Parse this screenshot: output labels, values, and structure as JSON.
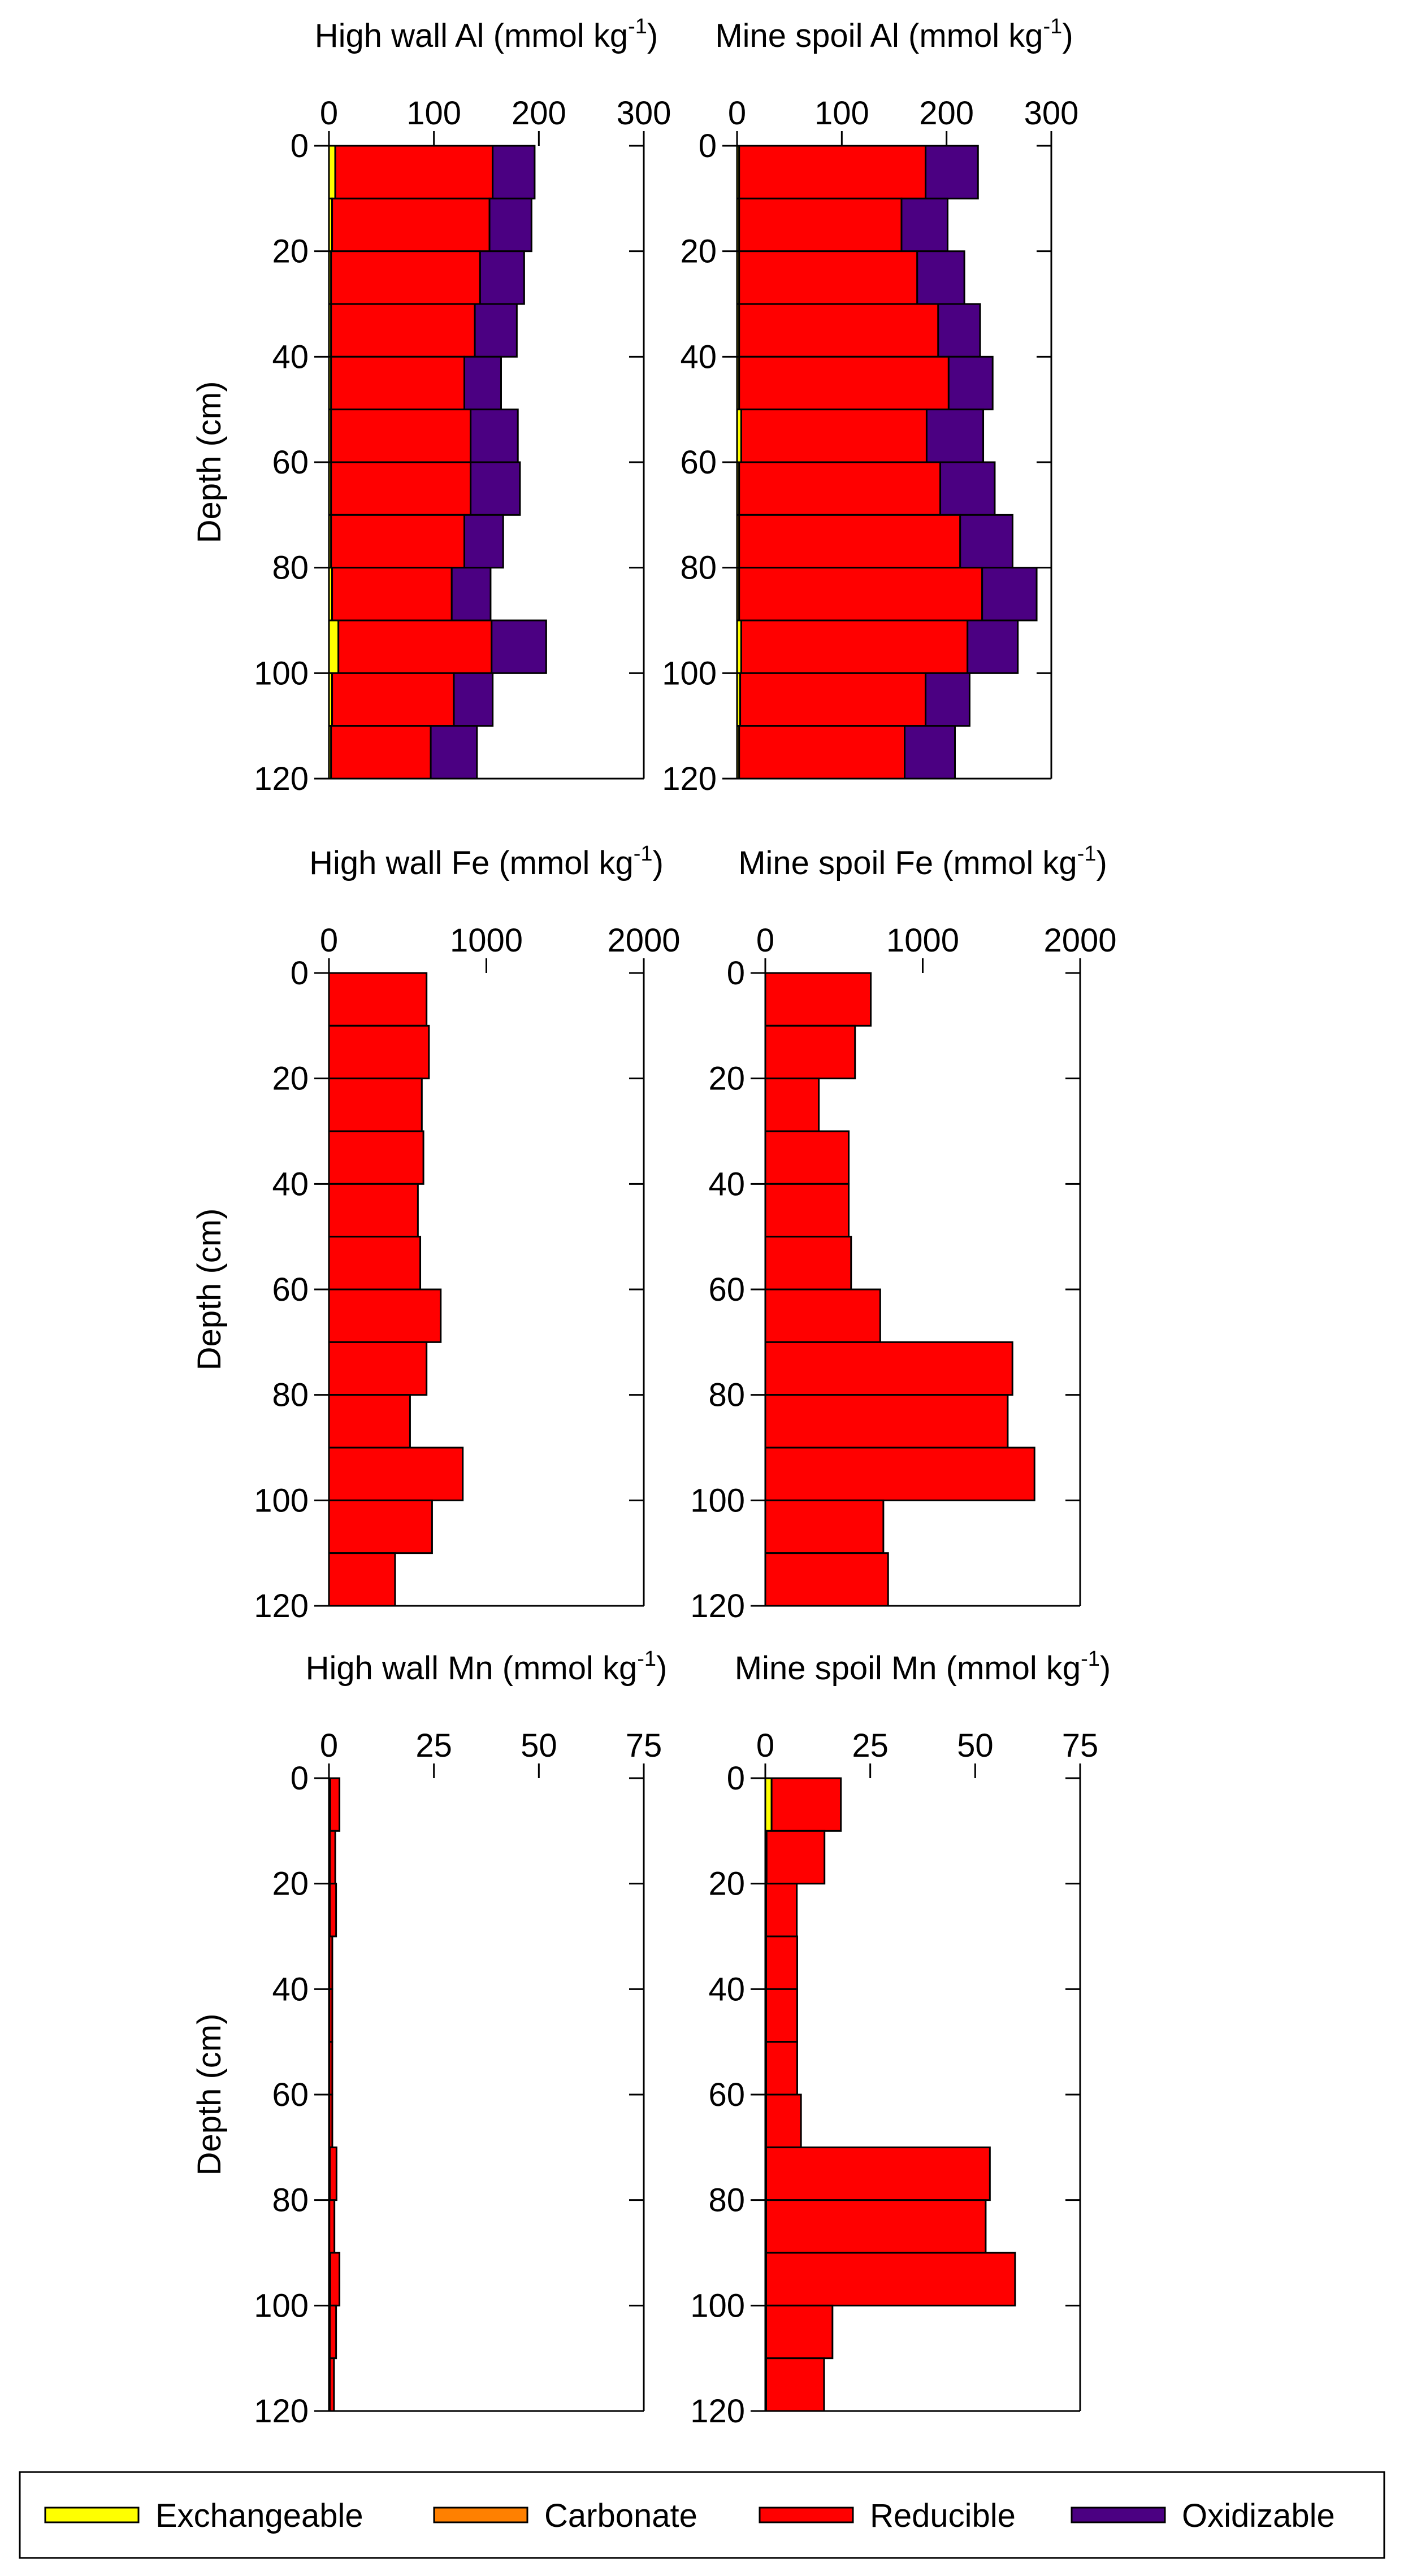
{
  "chart_data": {
    "type": "bar",
    "orientation": "horizontal-stacked",
    "depth_label": "Depth (cm)",
    "depth_ticks": [
      0,
      20,
      40,
      60,
      80,
      100,
      120
    ],
    "depth_range": [
      0,
      120
    ],
    "layer_tops_cm": [
      0,
      10,
      20,
      30,
      40,
      50,
      60,
      70,
      80,
      90,
      100,
      110
    ],
    "fractions": [
      {
        "name": "Exchangeable",
        "color": "#ffff00"
      },
      {
        "name": "Carbonate",
        "color": "#ff8000"
      },
      {
        "name": "Reducible",
        "color": "#ff0000"
      },
      {
        "name": "Oxidizable",
        "color": "#4b0082"
      }
    ],
    "panels": [
      {
        "title": "High wall Al (mmol kg",
        "title_sup": "-1",
        "title_close": ")",
        "xlim": [
          0,
          300
        ],
        "xticks": [
          0,
          100,
          200,
          300
        ],
        "series": {
          "Exchangeable": [
            6,
            3,
            2,
            2,
            2,
            2,
            2,
            2,
            3,
            9,
            3,
            2
          ],
          "Carbonate": [
            0,
            0,
            0,
            0,
            0,
            0,
            0,
            0,
            0,
            0,
            0,
            0
          ],
          "Reducible": [
            150,
            150,
            142,
            137,
            127,
            133,
            133,
            127,
            114,
            146,
            116,
            95
          ],
          "Oxidizable": [
            40,
            40,
            42,
            40,
            35,
            45,
            47,
            37,
            37,
            52,
            37,
            44
          ]
        }
      },
      {
        "title": "Mine spoil Al (mmol kg",
        "title_sup": "-1",
        "title_close": ")",
        "xlim": [
          0,
          300
        ],
        "xticks": [
          0,
          100,
          200,
          300
        ],
        "series": {
          "Exchangeable": [
            2,
            2,
            2,
            2,
            2,
            4,
            2,
            2,
            2,
            4,
            3,
            2
          ],
          "Carbonate": [
            0,
            0,
            0,
            0,
            0,
            0,
            0,
            0,
            0,
            0,
            0,
            0
          ],
          "Reducible": [
            178,
            155,
            170,
            190,
            200,
            177,
            192,
            211,
            232,
            216,
            177,
            158
          ],
          "Oxidizable": [
            50,
            44,
            45,
            40,
            42,
            54,
            52,
            50,
            52,
            48,
            42,
            48
          ]
        }
      },
      {
        "title": "High wall Fe (mmol kg",
        "title_sup": "-1",
        "title_close": ")",
        "xlim": [
          0,
          2000
        ],
        "xticks": [
          0,
          1000,
          2000
        ],
        "series": {
          "Exchangeable": [
            0,
            0,
            0,
            0,
            0,
            0,
            0,
            0,
            0,
            0,
            0,
            0
          ],
          "Carbonate": [
            0,
            0,
            0,
            0,
            0,
            0,
            0,
            0,
            0,
            0,
            0,
            0
          ],
          "Reducible": [
            620,
            635,
            590,
            600,
            565,
            580,
            710,
            620,
            515,
            850,
            655,
            420
          ],
          "Oxidizable": [
            0,
            0,
            0,
            0,
            0,
            0,
            0,
            0,
            0,
            0,
            0,
            0
          ]
        }
      },
      {
        "title": "Mine spoil Fe (mmol kg",
        "title_sup": "-1",
        "title_close": ")",
        "xlim": [
          0,
          2000
        ],
        "xticks": [
          0,
          1000,
          2000
        ],
        "series": {
          "Exchangeable": [
            0,
            0,
            0,
            0,
            0,
            0,
            0,
            0,
            0,
            0,
            0,
            0
          ],
          "Carbonate": [
            0,
            0,
            0,
            0,
            0,
            0,
            0,
            0,
            0,
            0,
            0,
            0
          ],
          "Reducible": [
            670,
            570,
            340,
            530,
            530,
            545,
            730,
            1570,
            1540,
            1710,
            750,
            780
          ],
          "Oxidizable": [
            0,
            0,
            0,
            0,
            0,
            0,
            0,
            0,
            0,
            0,
            0,
            0
          ]
        }
      },
      {
        "title": "High wall Mn (mmol kg",
        "title_sup": "-1",
        "title_close": ")",
        "xlim": [
          0,
          75
        ],
        "xticks": [
          0,
          25,
          50,
          75
        ],
        "series": {
          "Exchangeable": [
            0.3,
            0.2,
            0.2,
            0.1,
            0.1,
            0.1,
            0.1,
            0.2,
            0.1,
            0.3,
            0.2,
            0.2
          ],
          "Carbonate": [
            0,
            0,
            0,
            0,
            0,
            0,
            0,
            0,
            0,
            0,
            0,
            0
          ],
          "Reducible": [
            2.2,
            1.3,
            1.5,
            0.7,
            0.7,
            0.7,
            0.7,
            1.6,
            1.2,
            2.2,
            1.5,
            1.0
          ],
          "Oxidizable": [
            0,
            0,
            0,
            0,
            0,
            0,
            0,
            0,
            0,
            0,
            0,
            0
          ]
        }
      },
      {
        "title": "Mine spoil Mn (mmol kg",
        "title_sup": "-1",
        "title_close": ")",
        "xlim": [
          0,
          75
        ],
        "xticks": [
          0,
          25,
          50,
          75
        ],
        "series": {
          "Exchangeable": [
            1.5,
            0.3,
            0.2,
            0.2,
            0.2,
            0.2,
            0.2,
            0.2,
            0.2,
            0.2,
            0.2,
            0.2
          ],
          "Carbonate": [
            0,
            0,
            0,
            0,
            0,
            0,
            0,
            0,
            0,
            0,
            0,
            0
          ],
          "Reducible": [
            16.5,
            13.8,
            7.3,
            7.4,
            7.4,
            7.4,
            8.3,
            53.3,
            52.3,
            59.3,
            15.8,
            13.8
          ],
          "Oxidizable": [
            0,
            0,
            0,
            0,
            0,
            0,
            0,
            0,
            0,
            0,
            0,
            0
          ]
        }
      }
    ]
  }
}
